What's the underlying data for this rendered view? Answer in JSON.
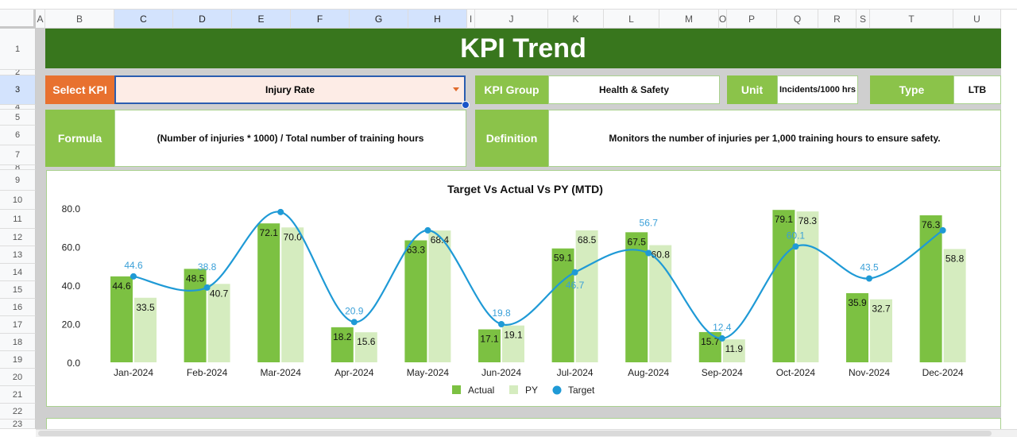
{
  "columns": [
    "A",
    "B",
    "C",
    "D",
    "E",
    "F",
    "G",
    "H",
    "I",
    "J",
    "K",
    "L",
    "M",
    "O",
    "P",
    "Q",
    "R",
    "S",
    "T",
    "U"
  ],
  "rows": [
    "1",
    "2",
    "3",
    "4",
    "5",
    "6",
    "7",
    "8",
    "9",
    "10",
    "11",
    "12",
    "13",
    "14",
    "15",
    "16",
    "17",
    "18",
    "19",
    "20",
    "21",
    "22",
    "23"
  ],
  "header": {
    "title": "KPI Trend"
  },
  "kpi": {
    "select_label": "Select KPI",
    "selected": "Injury Rate",
    "group_label": "KPI Group",
    "group": "Health & Safety",
    "unit_label": "Unit",
    "unit": "Incidents/1000 hrs",
    "type_label": "Type",
    "type": "LTB",
    "formula_label": "Formula",
    "formula": "(Number of injuries * 1000) / Total number of training hours",
    "definition_label": "Definition",
    "definition": "Monitors the number of injuries per 1,000 training hours to ensure safety."
  },
  "colors": {
    "header": "#38761d",
    "select": "#e8712f",
    "label": "#8bc34a",
    "actual": "#7cc142",
    "py": "#d5ecbf",
    "target": "#1f9ad6"
  },
  "chart_data": {
    "type": "bar",
    "title": "Target Vs Actual Vs PY (MTD)",
    "categories": [
      "Jan-2024",
      "Feb-2024",
      "Mar-2024",
      "Apr-2024",
      "May-2024",
      "Jun-2024",
      "Jul-2024",
      "Aug-2024",
      "Sep-2024",
      "Oct-2024",
      "Nov-2024",
      "Dec-2024"
    ],
    "yticks": [
      "0.0",
      "20.0",
      "40.0",
      "60.0",
      "80.0"
    ],
    "ylim": [
      0,
      80
    ],
    "series": [
      {
        "name": "Actual",
        "type": "bar",
        "values": [
          44.6,
          48.5,
          72.1,
          18.2,
          63.3,
          17.1,
          59.1,
          67.5,
          15.7,
          79.1,
          35.9,
          76.3
        ]
      },
      {
        "name": "PY",
        "type": "bar",
        "values": [
          33.5,
          40.7,
          70.0,
          15.6,
          68.4,
          19.1,
          68.5,
          60.8,
          11.9,
          78.3,
          32.7,
          58.8
        ]
      },
      {
        "name": "Target",
        "type": "line",
        "values": [
          44.6,
          38.8,
          78.0,
          20.9,
          68.5,
          19.8,
          46.7,
          56.7,
          12.4,
          60.1,
          43.5,
          68.5
        ],
        "labels_shown": [
          true,
          true,
          false,
          true,
          false,
          true,
          true,
          true,
          true,
          true,
          true,
          false
        ]
      }
    ],
    "legend": "bottom"
  }
}
